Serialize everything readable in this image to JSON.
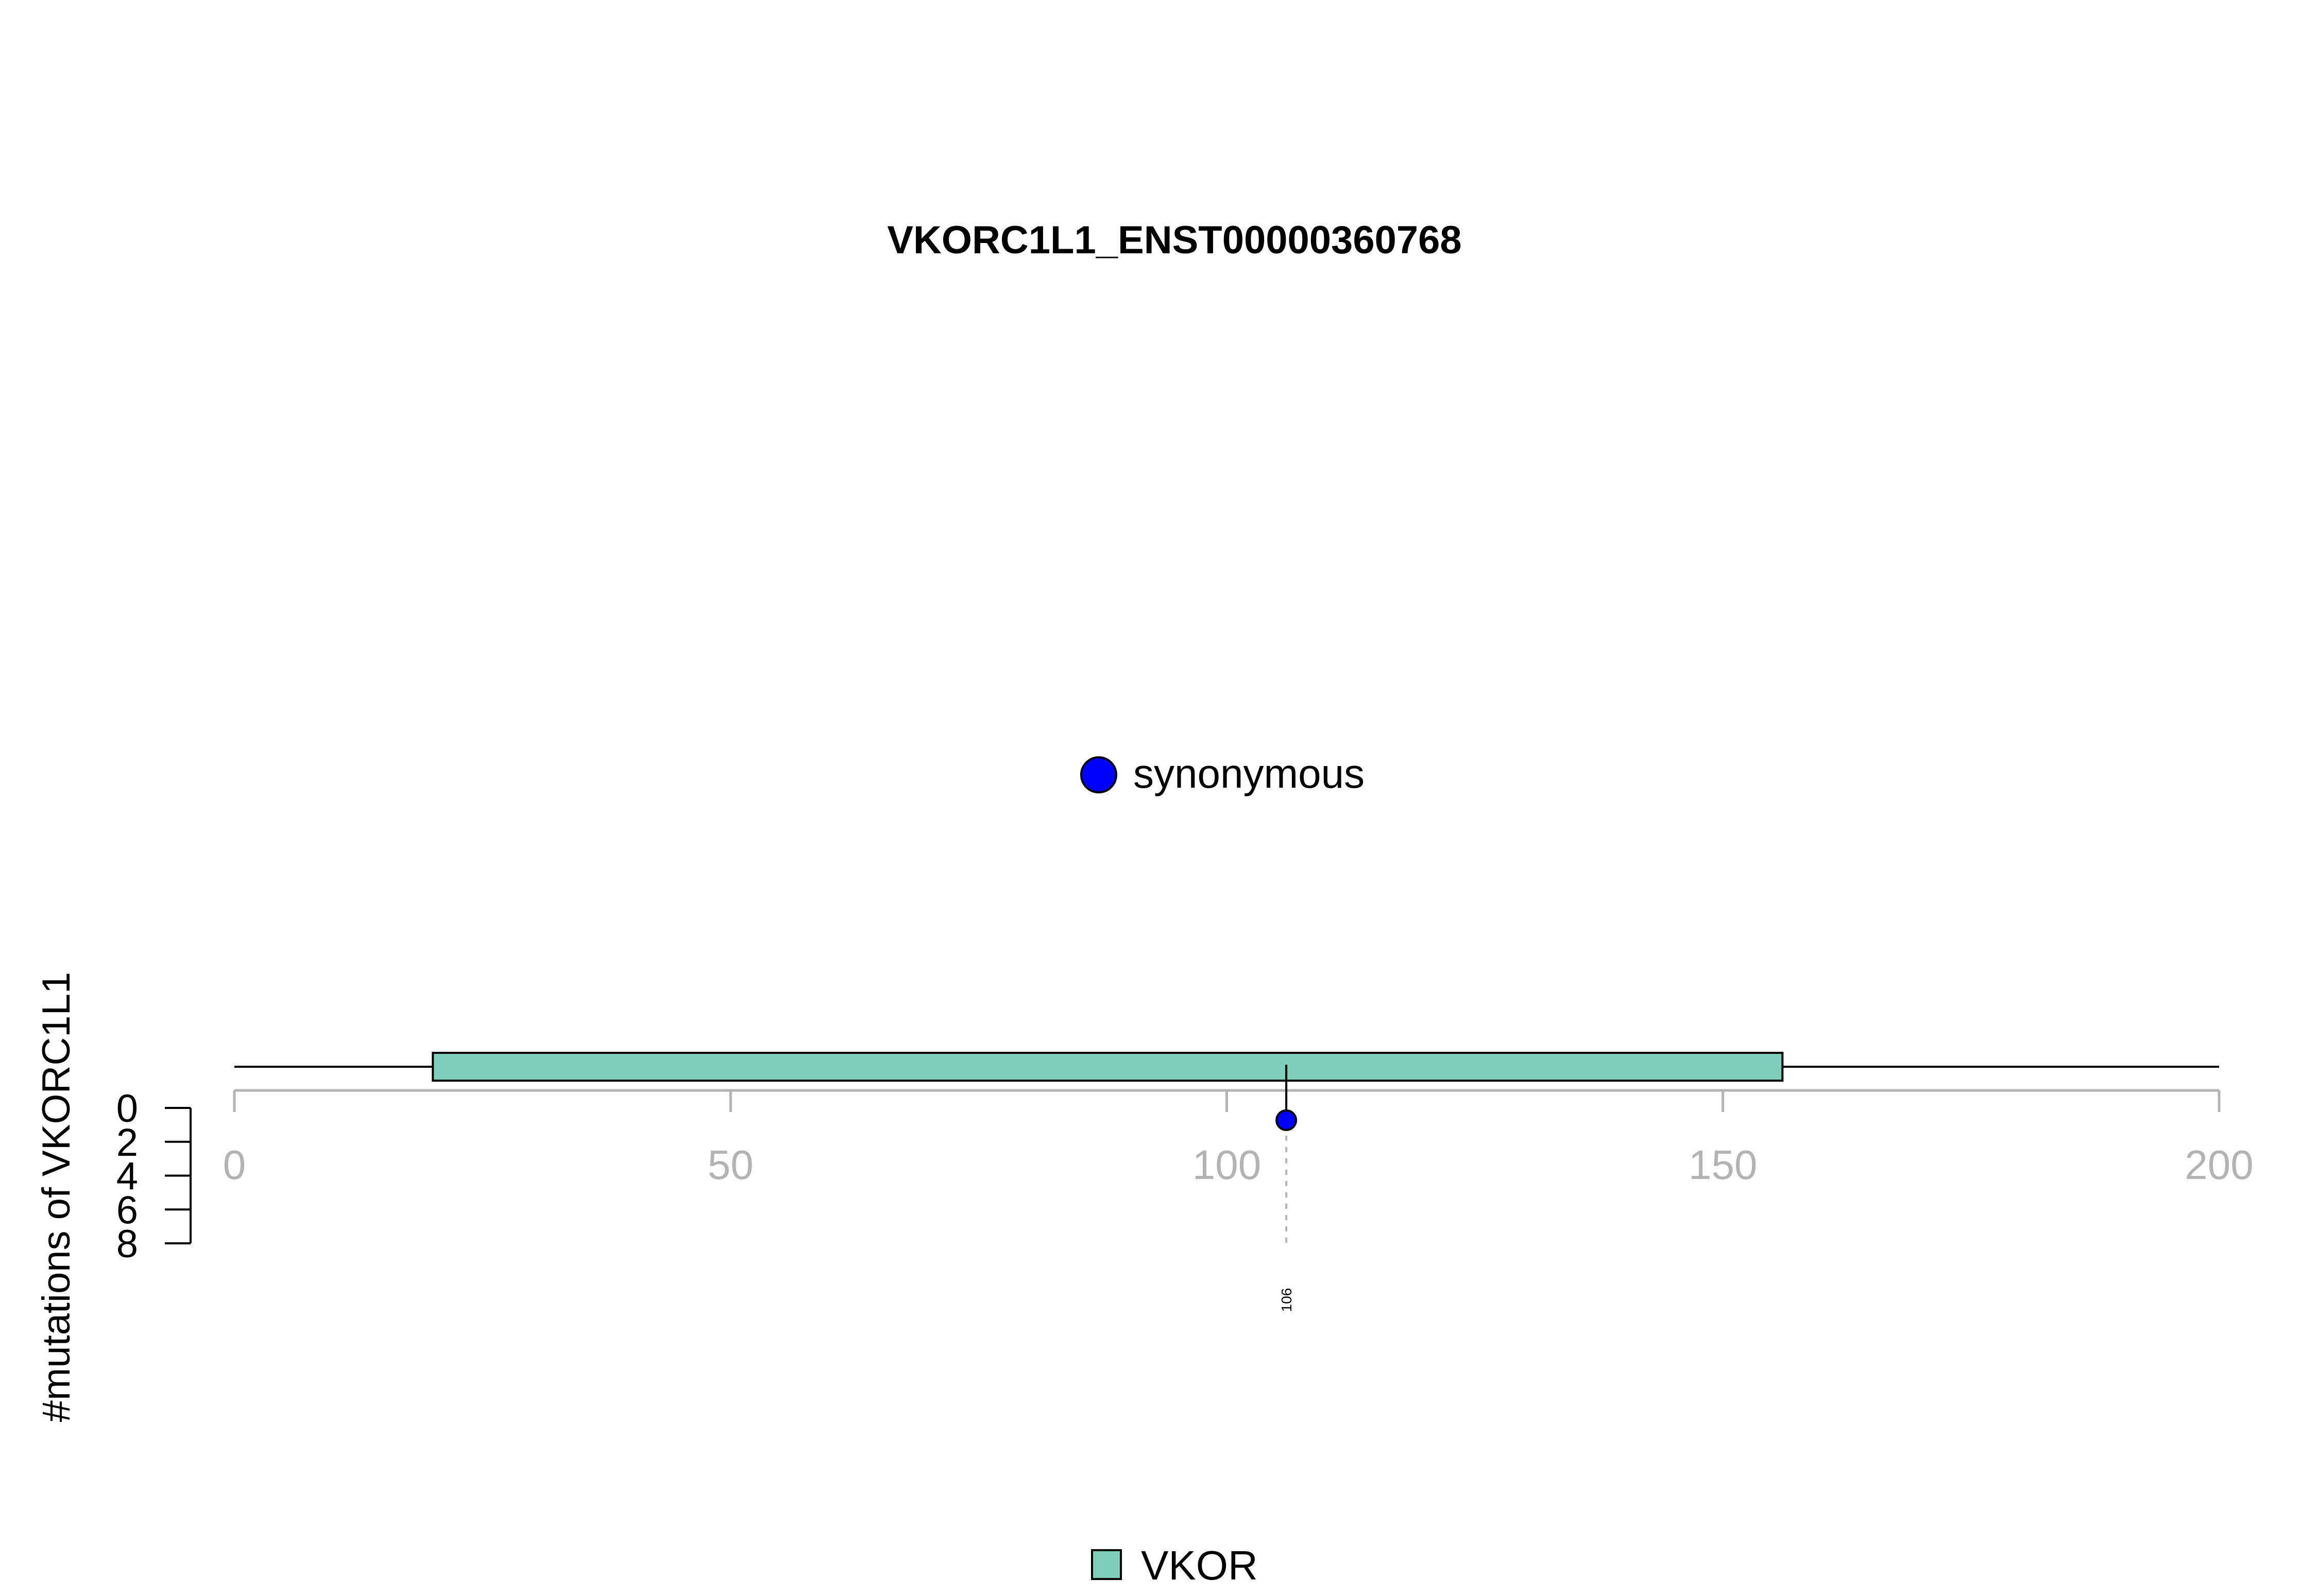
{
  "chart_data": {
    "type": "lollipop",
    "title": "VKORC1L1_ENST00000360768",
    "ylabel": "#mutations of VKORC1L1",
    "xlim": [
      0,
      200
    ],
    "x_ticks": [
      "0",
      "50",
      "100",
      "150",
      "200"
    ],
    "ylim": [
      0,
      8
    ],
    "y_ticks": [
      "0",
      "2",
      "4",
      "6",
      "8"
    ],
    "protein_length": 200,
    "domains": [
      {
        "name": "VKOR",
        "start": 20,
        "end": 156,
        "color": "#7fcdbb"
      }
    ],
    "mutations": [
      {
        "position": 106,
        "count": 1,
        "type": "synonymous",
        "label": "106",
        "color": "#0000ff"
      }
    ],
    "mutation_legend": [
      {
        "label": "synonymous",
        "color": "#0000ff"
      }
    ],
    "domain_legend": [
      {
        "label": "VKOR",
        "color": "#7fcdbb"
      }
    ]
  }
}
